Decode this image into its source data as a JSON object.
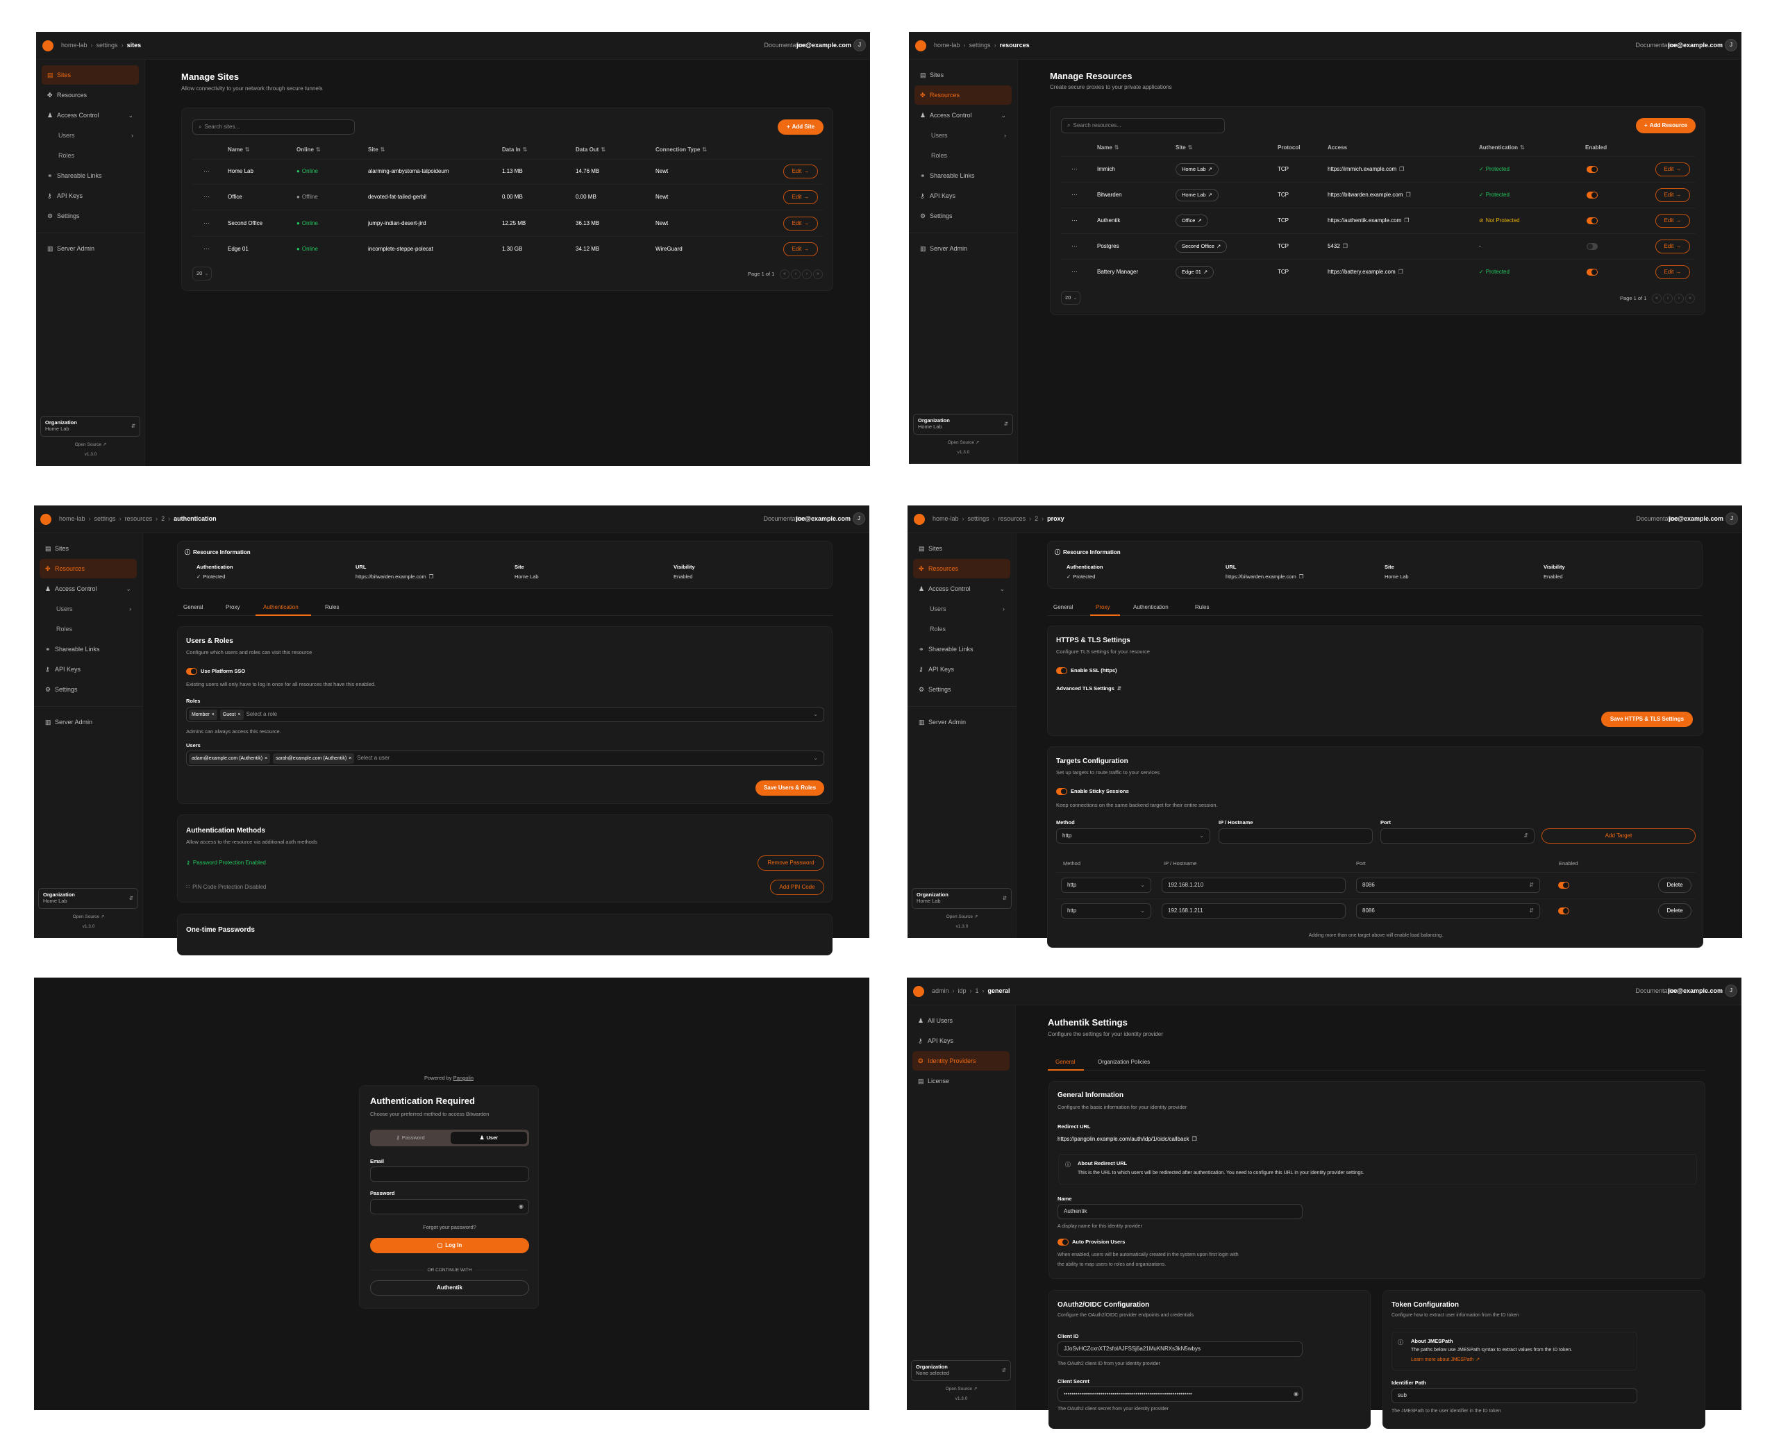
{
  "colors": {
    "accent": "#f06a12",
    "success": "#22c55e",
    "warning": "#eab308",
    "background": "#151515"
  },
  "common": {
    "docs": "Documentation",
    "user": "joe@example.com",
    "avatar": "J",
    "org_label": "Organization",
    "open_source": "Open Source",
    "version": "v1.3.0"
  },
  "org_nav": [
    {
      "label": "Sites",
      "icon": "sites-icon"
    },
    {
      "label": "Resources",
      "icon": "resources-icon"
    },
    {
      "label": "Access Control",
      "icon": "access-control-icon"
    },
    {
      "label": "Users",
      "icon": ""
    },
    {
      "label": "Roles",
      "icon": ""
    },
    {
      "label": "Shareable Links",
      "icon": "link-icon"
    },
    {
      "label": "API Keys",
      "icon": "key-icon"
    },
    {
      "label": "Settings",
      "icon": "gear-icon"
    },
    {
      "label": "Server Admin",
      "icon": "server-icon"
    }
  ],
  "admin_nav": [
    {
      "label": "All Users",
      "icon": "users-icon"
    },
    {
      "label": "API Keys",
      "icon": "key-icon"
    },
    {
      "label": "Identity Providers",
      "icon": "fingerprint-icon"
    },
    {
      "label": "License",
      "icon": "license-icon"
    }
  ],
  "sites": {
    "breadcrumb": [
      "home-lab",
      "settings",
      "sites"
    ],
    "org_value": "Home Lab",
    "title": "Manage Sites",
    "subtitle": "Allow connectivity to your network through secure tunnels",
    "search_placeholder": "Search sites...",
    "add_label": "Add Site",
    "columns": [
      "Name",
      "Online",
      "Site",
      "Data In",
      "Data Out",
      "Connection Type"
    ],
    "rows": [
      {
        "name": "Home Lab",
        "online": "Online",
        "is_online": true,
        "site": "alarming-ambystoma-talpoideum",
        "data_in": "1.13 MB",
        "data_out": "14.76 MB",
        "conn": "Newt"
      },
      {
        "name": "Office",
        "online": "Offline",
        "is_online": false,
        "site": "devoted-fat-tailed-gerbil",
        "data_in": "0.00 MB",
        "data_out": "0.00 MB",
        "conn": "Newt"
      },
      {
        "name": "Second Office",
        "online": "Online",
        "is_online": true,
        "site": "jumpy-indian-desert-jird",
        "data_in": "12.25 MB",
        "data_out": "36.13 MB",
        "conn": "Newt"
      },
      {
        "name": "Edge 01",
        "online": "Online",
        "is_online": true,
        "site": "incomplete-steppe-polecat",
        "data_in": "1.30 GB",
        "data_out": "34.12 MB",
        "conn": "WireGuard"
      }
    ],
    "edit_label": "Edit",
    "page_size": "20",
    "page_label": "Page 1 of 1"
  },
  "resources": {
    "breadcrumb": [
      "home-lab",
      "settings",
      "resources"
    ],
    "org_value": "Home Lab",
    "title": "Manage Resources",
    "subtitle": "Create secure proxies to your private applications",
    "search_placeholder": "Search resources...",
    "add_label": "Add Resource",
    "columns": [
      "Name",
      "Site",
      "Protocol",
      "Access",
      "Authentication",
      "Enabled"
    ],
    "rows": [
      {
        "name": "Immich",
        "site": "Home Lab",
        "protocol": "TCP",
        "access": "https://immich.example.com",
        "auth": "Protected",
        "auth_state": "protected",
        "enabled": true
      },
      {
        "name": "Bitwarden",
        "site": "Home Lab",
        "protocol": "TCP",
        "access": "https://bitwarden.example.com",
        "auth": "Protected",
        "auth_state": "protected",
        "enabled": true
      },
      {
        "name": "Authentik",
        "site": "Office",
        "protocol": "TCP",
        "access": "https://authentik.example.com",
        "auth": "Not Protected",
        "auth_state": "not-protected",
        "enabled": true
      },
      {
        "name": "Postgres",
        "site": "Second Office",
        "protocol": "TCP",
        "access": "5432",
        "auth": "-",
        "auth_state": "none",
        "enabled": false
      },
      {
        "name": "Battery Manager",
        "site": "Edge 01",
        "protocol": "TCP",
        "access": "https://battery.example.com",
        "auth": "Protected",
        "auth_state": "protected",
        "enabled": true
      }
    ],
    "edit_label": "Edit",
    "page_size": "20",
    "page_label": "Page 1 of 1"
  },
  "resource_info": {
    "title": "Resource Information",
    "fields": [
      {
        "label": "Authentication",
        "value": "Protected"
      },
      {
        "label": "URL",
        "value": "https://bitwarden.example.com"
      },
      {
        "label": "Site",
        "value": "Home Lab"
      },
      {
        "label": "Visibility",
        "value": "Enabled"
      }
    ],
    "tabs": [
      "General",
      "Proxy",
      "Authentication",
      "Rules"
    ]
  },
  "auth_page": {
    "breadcrumb": [
      "home-lab",
      "settings",
      "resources",
      "2",
      "authentication"
    ],
    "org_value": "Home Lab",
    "users_roles": {
      "title": "Users & Roles",
      "desc": "Configure which users and roles can visit this resource",
      "sso_label": "Use Platform SSO",
      "sso_on": true,
      "sso_help": "Existing users will only have to log in once for all resources that have this enabled.",
      "roles_label": "Roles",
      "roles": [
        "Member",
        "Guest"
      ],
      "roles_placeholder": "Select a role",
      "roles_help": "Admins can always access this resource.",
      "users_label": "Users",
      "users": [
        "adam@example.com (Authentik)",
        "sarah@example.com (Authentik)"
      ],
      "users_placeholder": "Select a user",
      "save_label": "Save Users & Roles"
    },
    "methods": {
      "title": "Authentication Methods",
      "desc": "Allow access to the resource via additional auth methods",
      "password_status": "Password Protection Enabled",
      "remove_password": "Remove Password",
      "pin_status": "PIN Code Protection Disabled",
      "add_pin": "Add PIN Code"
    },
    "otp_title": "One-time Passwords"
  },
  "proxy_page": {
    "breadcrumb": [
      "home-lab",
      "settings",
      "resources",
      "2",
      "proxy"
    ],
    "org_value": "Home Lab",
    "tls": {
      "title": "HTTPS & TLS Settings",
      "desc": "Configure TLS settings for your resource",
      "ssl_label": "Enable SSL (https)",
      "ssl_on": true,
      "advanced": "Advanced TLS Settings",
      "save_label": "Save HTTPS & TLS Settings"
    },
    "targets": {
      "title": "Targets Configuration",
      "desc": "Set up targets to route traffic to your services",
      "sticky_label": "Enable Sticky Sessions",
      "sticky_on": true,
      "sticky_help": "Keep connections on the same backend target for their entire session.",
      "form": {
        "method_label": "Method",
        "method_value": "http",
        "ip_label": "IP / Hostname",
        "ip_value": "",
        "port_label": "Port",
        "port_value": "",
        "add_label": "Add Target"
      },
      "columns": [
        "Method",
        "IP / Hostname",
        "Port",
        "Enabled"
      ],
      "rows": [
        {
          "method": "http",
          "ip": "192.168.1.210",
          "port": "8086",
          "enabled": true
        },
        {
          "method": "http",
          "ip": "192.168.1.211",
          "port": "8086",
          "enabled": true
        }
      ],
      "delete_label": "Delete",
      "footer": "Adding more than one target above will enable load balancing."
    }
  },
  "login": {
    "powered_by": "Powered by",
    "powered_link": "Pangolin",
    "title": "Authentication Required",
    "desc": "Choose your preferred method to access Bitwarden",
    "tab_password": "Password",
    "tab_user": "User",
    "active_tab": "User",
    "email_label": "Email",
    "email_value": "",
    "password_label": "Password",
    "password_value": "",
    "forgot": "Forgot your password?",
    "login_label": "Log In",
    "divider": "OR CONTINUE WITH",
    "sso_label": "Authentik"
  },
  "idp_page": {
    "breadcrumb": [
      "admin",
      "idp",
      "1",
      "general"
    ],
    "org_value": "None selected",
    "title": "Authentik Settings",
    "subtitle": "Configure the settings for your identity provider",
    "tabs": [
      "General",
      "Organization Policies"
    ],
    "general": {
      "title": "General Information",
      "desc": "Configure the basic information for your identity provider",
      "redirect_label": "Redirect URL",
      "redirect_url": "https://pangolin.example.com/auth/idp/1/oidc/callback",
      "about_title": "About Redirect URL",
      "about_text": "This is the URL to which users will be redirected after authentication. You need to configure this URL in your identity provider settings.",
      "name_label": "Name",
      "name_value": "Authentik",
      "name_help": "A display name for this identity provider",
      "auto_label": "Auto Provision Users",
      "auto_on": true,
      "auto_help_1": "When enabled, users will be automatically created in the system upon first login with",
      "auto_help_2": "the ability to map users to roles and organizations."
    },
    "oauth": {
      "title": "OAuth2/OIDC Configuration",
      "desc": "Configure the OAuth2/OIDC provider endpoints and credentials",
      "client_id_label": "Client ID",
      "client_id": "JJoSvHCZcxnXT2sfoIAJFSSj6a21MuKNRXs3kN5wbys",
      "client_id_help": "The OAuth2 client ID from your identity provider",
      "secret_label": "Client Secret",
      "secret_value": "••••••••••••••••••••••••••••••••••••••••••••••••••••••••••••••••••",
      "secret_help": "The OAuth2 client secret from your identity provider"
    },
    "token": {
      "title": "Token Configuration",
      "desc": "Configure how to extract user information from the ID token",
      "about_title": "About JMESPath",
      "about_text": "The paths below use JMESPath syntax to extract values from the ID token.",
      "learn_more": "Learn more about JMESPath",
      "identifier_label": "Identifier Path",
      "identifier_value": "sub",
      "identifier_help": "The JMESPath to the user identifier in the ID token"
    }
  }
}
